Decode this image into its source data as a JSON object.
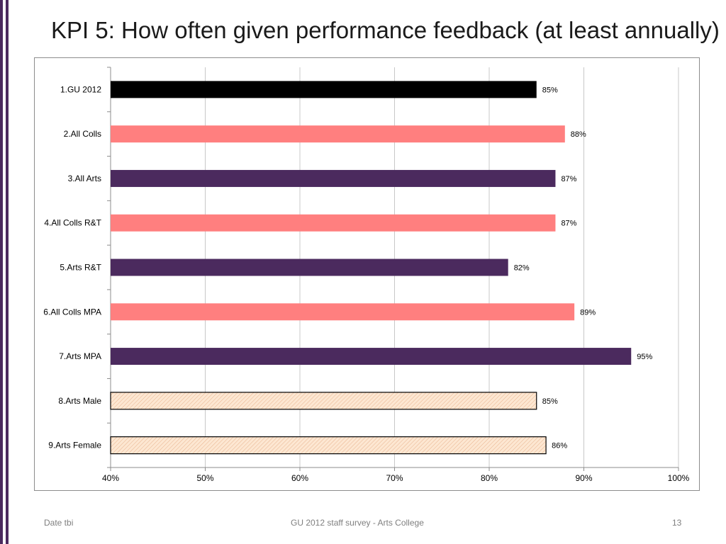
{
  "slide": {
    "title": "KPI 5: How often given performance feedback (at least annually)"
  },
  "footer": {
    "date": "Date tbi",
    "center": "GU 2012 staff survey -  Arts College",
    "page_number": "13"
  },
  "colors": {
    "black_bar": "#000000",
    "coral_bar": "#ff7f7f",
    "purple_bar": "#4b2a5e",
    "hatched_fill": "#fde7d2",
    "grid": "#c8c8c8",
    "accent_stripe": "#4b2a5e"
  },
  "chart_data": {
    "type": "bar",
    "orientation": "horizontal",
    "title": "",
    "xlabel": "",
    "ylabel": "",
    "xlim": [
      40,
      100
    ],
    "x_ticks": [
      40,
      50,
      60,
      70,
      80,
      90,
      100
    ],
    "x_tick_labels": [
      "40%",
      "50%",
      "60%",
      "70%",
      "80%",
      "90%",
      "100%"
    ],
    "grid": true,
    "categories": [
      "1.GU 2012",
      "2.All Colls",
      "3.All Arts",
      "4.All Colls R&T",
      "5.Arts R&T",
      "6.All Colls MPA",
      "7.Arts MPA",
      "8.Arts Male",
      "9.Arts Female"
    ],
    "values": [
      85,
      88,
      87,
      87,
      82,
      89,
      95,
      85,
      86
    ],
    "value_labels": [
      "85%",
      "88%",
      "87%",
      "87%",
      "82%",
      "89%",
      "95%",
      "85%",
      "86%"
    ],
    "bar_styles": [
      "black",
      "coral",
      "purple",
      "coral",
      "purple",
      "coral",
      "purple",
      "hatched",
      "hatched"
    ]
  }
}
